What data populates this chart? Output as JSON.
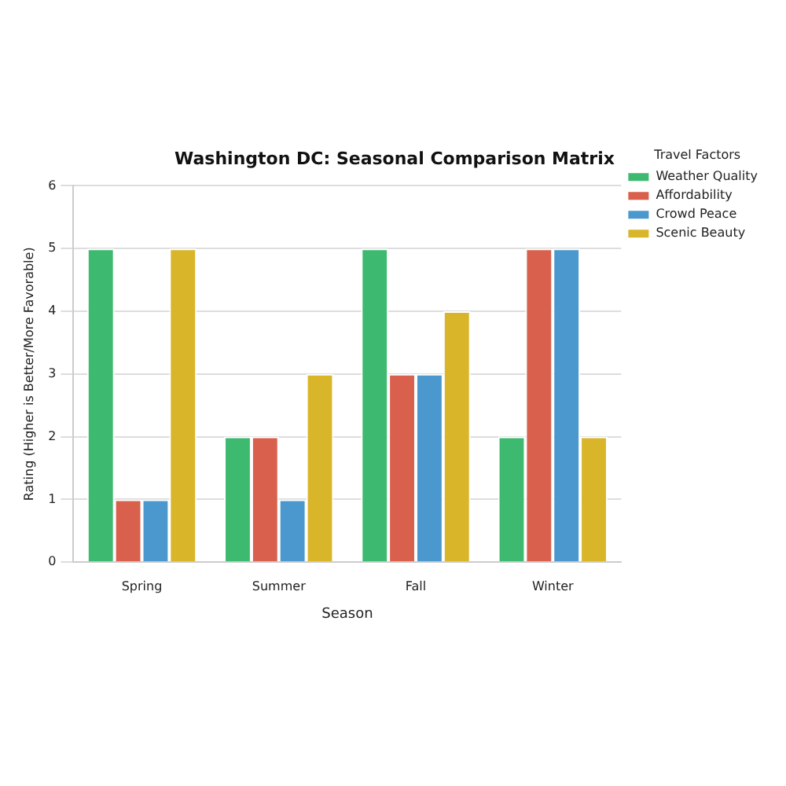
{
  "chart_data": {
    "type": "bar",
    "title": "Washington DC: Seasonal Comparison Matrix",
    "xlabel": "Season",
    "ylabel": "Rating (Higher is Better/More Favorable)",
    "legend_title": "Travel Factors",
    "categories": [
      "Spring",
      "Summer",
      "Fall",
      "Winter"
    ],
    "series": [
      {
        "name": "Weather Quality",
        "color": "#3dba6f",
        "values": [
          5,
          2,
          5,
          2
        ]
      },
      {
        "name": "Affordability",
        "color": "#d9604c",
        "values": [
          1,
          2,
          3,
          5
        ]
      },
      {
        "name": "Crowd Peace",
        "color": "#4a98cd",
        "values": [
          1,
          1,
          3,
          5
        ]
      },
      {
        "name": "Scenic Beauty",
        "color": "#d9b52a",
        "values": [
          5,
          3,
          4,
          2
        ]
      }
    ],
    "ylim": [
      0,
      6
    ],
    "yticks": [
      0,
      1,
      2,
      3,
      4,
      5,
      6
    ],
    "grid": "y",
    "legend": "top right"
  }
}
